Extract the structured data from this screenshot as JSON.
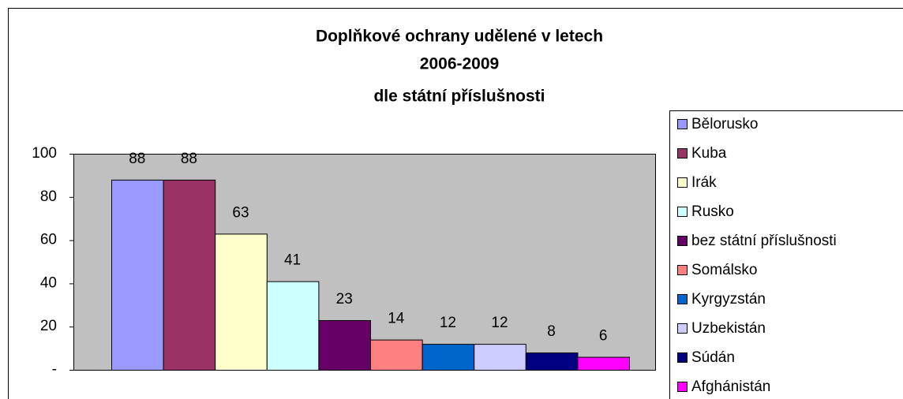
{
  "chart_data": {
    "type": "bar",
    "title": [
      "Doplňkové ochrany udělené v letech",
      "2006-2009",
      "dle státní příslušnosti"
    ],
    "series": [
      {
        "name": "Bělorusko",
        "color": "#9999ff",
        "values": [
          88
        ]
      },
      {
        "name": "Kuba",
        "color": "#993366",
        "values": [
          88
        ]
      },
      {
        "name": "Irák",
        "color": "#ffffcc",
        "values": [
          63
        ]
      },
      {
        "name": "Rusko",
        "color": "#ccffff",
        "values": [
          41
        ]
      },
      {
        "name": "bez státní příslušnosti",
        "color": "#660066",
        "values": [
          23
        ]
      },
      {
        "name": "Somálsko",
        "color": "#ff8080",
        "values": [
          14
        ]
      },
      {
        "name": "Kyrgyzstán",
        "color": "#0066cc",
        "values": [
          12
        ]
      },
      {
        "name": "Uzbekistán",
        "color": "#ccccff",
        "values": [
          12
        ]
      },
      {
        "name": "Súdán",
        "color": "#000080",
        "values": [
          8
        ]
      },
      {
        "name": "Afghánistán",
        "color": "#ff00ff",
        "values": [
          6
        ]
      }
    ],
    "ylim": [
      0,
      100
    ],
    "yticks": [
      {
        "value": 0,
        "label": "-"
      },
      20,
      40,
      60,
      80,
      100
    ],
    "plot_background": "#c0c0c0",
    "legend": "right"
  }
}
